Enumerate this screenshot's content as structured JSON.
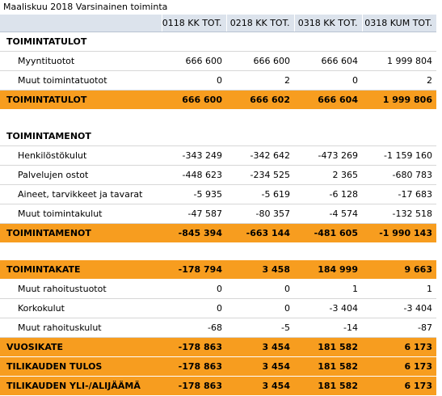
{
  "title": "Maaliskuu 2018 Varsinainen toiminta",
  "columns": [
    "",
    "0118 KK TOT.",
    "0218 KK TOT.",
    "0318 KK TOT.",
    "0318 KUM TOT."
  ],
  "rows": [
    {
      "label": "TOIMINTATULOT"
    },
    {
      "label": "Myyntituotot",
      "values": [
        "666 600",
        "666 600",
        "666 604",
        "1 999 804"
      ]
    },
    {
      "label": "Muut toimintatuotot",
      "values": [
        "0",
        "2",
        "0",
        "2"
      ]
    },
    {
      "label": "TOIMINTATULOT",
      "values": [
        "666 600",
        "666 602",
        "666 604",
        "1 999 806"
      ]
    },
    {
      "label": ""
    },
    {
      "label": "TOIMINTAMENOT"
    },
    {
      "label": "Henkilöstökulut",
      "values": [
        "-343 249",
        "-342 642",
        "-473 269",
        "-1 159 160"
      ]
    },
    {
      "label": "Palvelujen ostot",
      "values": [
        "-448 623",
        "-234 525",
        "2 365",
        "-680 783"
      ]
    },
    {
      "label": "Aineet, tarvikkeet ja tavarat",
      "values": [
        "-5 935",
        "-5 619",
        "-6 128",
        "-17 683"
      ]
    },
    {
      "label": "Muut toimintakulut",
      "values": [
        "-47 587",
        "-80 357",
        "-4 574",
        "-132 518"
      ]
    },
    {
      "label": "TOIMINTAMENOT",
      "values": [
        "-845 394",
        "-663 144",
        "-481 605",
        "-1 990 143"
      ]
    },
    {
      "label": ""
    },
    {
      "label": "TOIMINTAKATE",
      "values": [
        "-178 794",
        "3 458",
        "184 999",
        "9 663"
      ]
    },
    {
      "label": "Muut rahoitustuotot",
      "values": [
        "0",
        "0",
        "1",
        "1"
      ]
    },
    {
      "label": "Korkokulut",
      "values": [
        "0",
        "0",
        "-3 404",
        "-3 404"
      ]
    },
    {
      "label": "Muut rahoituskulut",
      "values": [
        "-68",
        "-5",
        "-14",
        "-87"
      ]
    },
    {
      "label": "VUOSIKATE",
      "values": [
        "-178 863",
        "3 454",
        "181 582",
        "6 173"
      ]
    },
    {
      "label": "TILIKAUDEN TULOS",
      "values": [
        "-178 863",
        "3 454",
        "181 582",
        "6 173"
      ]
    },
    {
      "label": "TILIKAUDEN YLI-/ALIJÄÄMÄ",
      "values": [
        "-178 863",
        "3 454",
        "181 582",
        "6 173"
      ]
    }
  ],
  "colors": {
    "total_row": "#f79d1f",
    "header_row": "#dce3ec"
  }
}
